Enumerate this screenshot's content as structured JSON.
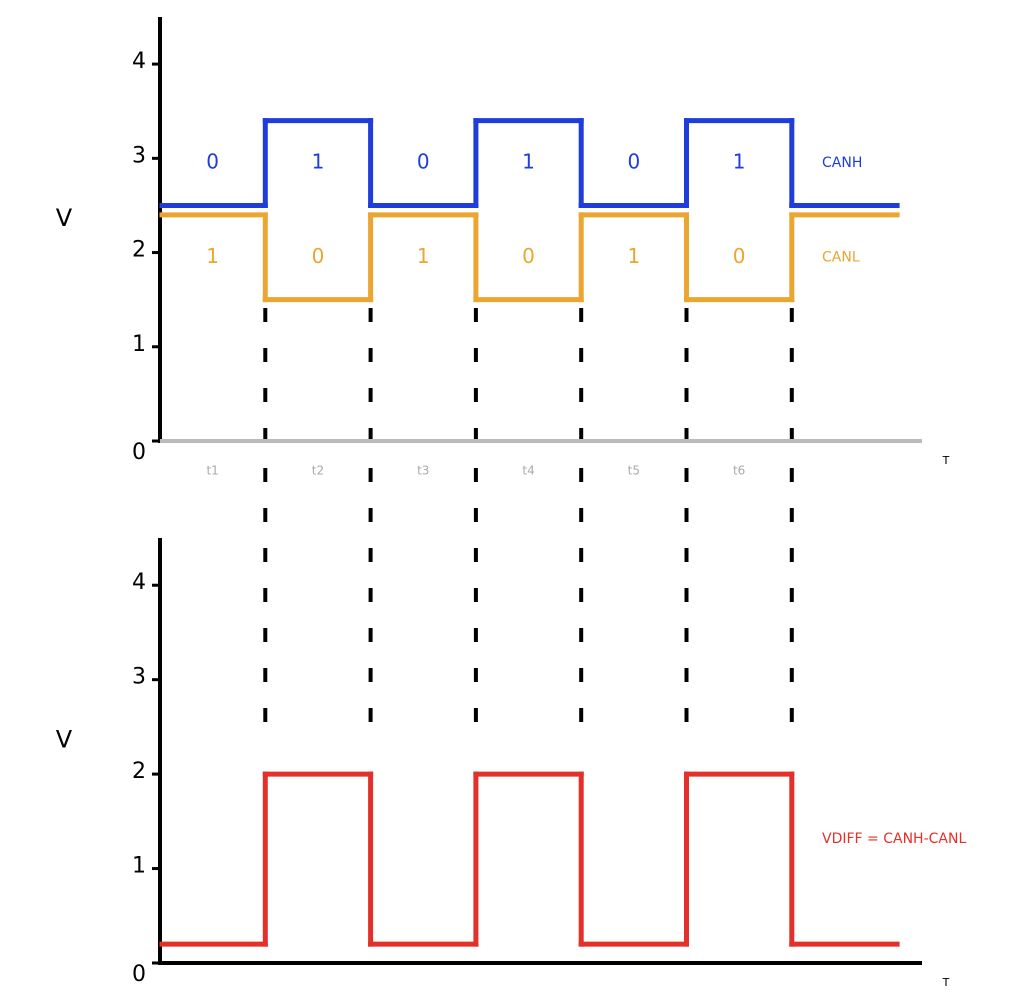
{
  "chart_data": [
    {
      "type": "step",
      "y_label": "V",
      "x_label": "T",
      "categories": [
        "t1",
        "t2",
        "t3",
        "t4",
        "t5",
        "t6",
        null
      ],
      "ylim": [
        0,
        4.5
      ],
      "yticks": [
        0,
        1,
        2,
        3,
        4
      ],
      "series": [
        {
          "name": "CANH",
          "color": "#1f3ddb",
          "values": [
            2.5,
            3.4,
            2.5,
            3.4,
            2.5,
            3.4,
            2.5
          ],
          "bits": [
            "0",
            "1",
            "0",
            "1",
            "0",
            "1"
          ]
        },
        {
          "name": "CANL",
          "color": "#eba631",
          "values": [
            2.4,
            1.5,
            2.4,
            1.5,
            2.4,
            1.5,
            2.4
          ],
          "bits": [
            "1",
            "0",
            "1",
            "0",
            "1",
            "0"
          ]
        }
      ]
    },
    {
      "type": "step",
      "y_label": "V",
      "x_label": "T",
      "categories": [
        null,
        null,
        null,
        null,
        null,
        null,
        null
      ],
      "ylim": [
        0,
        4.5
      ],
      "yticks": [
        0,
        1,
        2,
        3,
        4
      ],
      "series": [
        {
          "name": "VDIFF = CANH-CANL",
          "color": "#e3302a",
          "values": [
            0.2,
            2,
            0.2,
            2,
            0.2,
            2,
            0.2
          ]
        }
      ]
    }
  ]
}
